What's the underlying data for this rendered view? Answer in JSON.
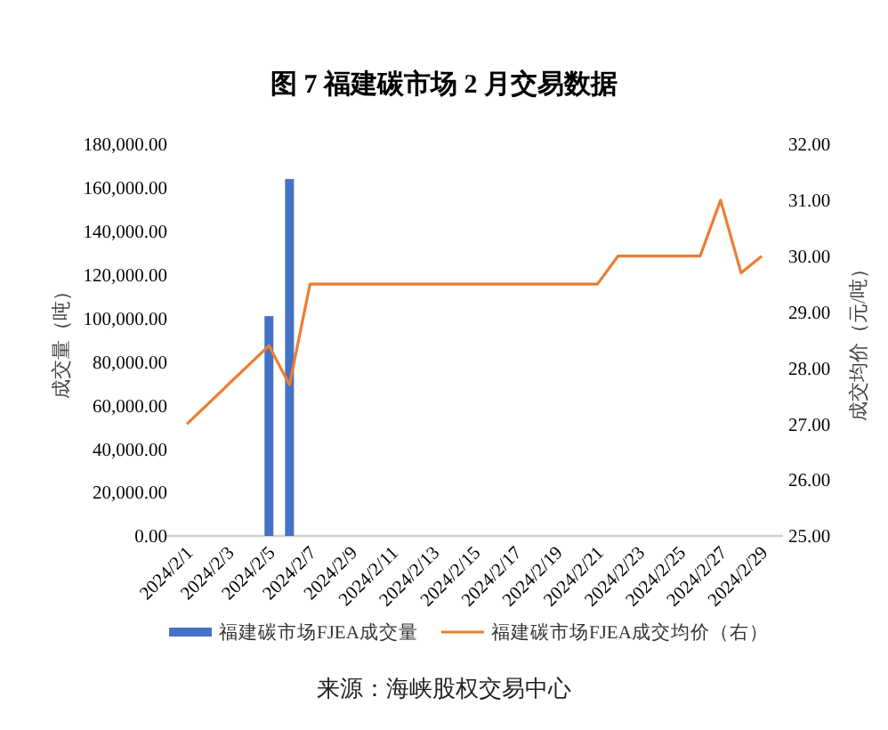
{
  "chart_data": {
    "type": "bar",
    "title": "图 7 福建碳市场 2 月交易数据",
    "categories": [
      "2024/2/1",
      null,
      "2024/2/3",
      null,
      "2024/2/5",
      null,
      "2024/2/7",
      null,
      "2024/2/9",
      null,
      "2024/2/11",
      null,
      "2024/2/13",
      null,
      "2024/2/15",
      null,
      "2024/2/17",
      null,
      "2024/2/19",
      null,
      "2024/2/21",
      null,
      "2024/2/23",
      null,
      "2024/2/25",
      null,
      "2024/2/27",
      null,
      "2024/2/29"
    ],
    "series": [
      {
        "name": "福建碳市场FJEA成交量",
        "color": "#4472c4",
        "values": [
          null,
          null,
          null,
          null,
          101000,
          164000,
          null,
          null,
          null,
          null,
          null,
          null,
          null,
          null,
          null,
          null,
          null,
          null,
          null,
          null,
          null,
          null,
          null,
          null,
          null,
          null,
          null,
          null,
          null
        ]
      },
      {
        "name": "福建碳市场FJEA成交均价（右）",
        "type": "line",
        "axis": "y2",
        "color": "#ed7d31",
        "values": [
          27.0,
          null,
          null,
          null,
          28.4,
          27.7,
          29.5,
          null,
          null,
          null,
          null,
          null,
          null,
          null,
          null,
          null,
          null,
          null,
          null,
          null,
          29.5,
          30.0,
          null,
          null,
          null,
          30.0,
          31.0,
          29.7,
          30.0
        ]
      }
    ],
    "ylabel": "成交量（吨）",
    "y2label": "成交均价（元/吨）",
    "ylim": [
      0,
      180000
    ],
    "yticks": [
      {
        "value": 0,
        "label": "0.00"
      },
      {
        "value": 20000,
        "label": "20,000.00"
      },
      {
        "value": 40000,
        "label": "40,000.00"
      },
      {
        "value": 60000,
        "label": "60,000.00"
      },
      {
        "value": 80000,
        "label": "80,000.00"
      },
      {
        "value": 100000,
        "label": "100,000.00"
      },
      {
        "value": 120000,
        "label": "120,000.00"
      },
      {
        "value": 140000,
        "label": "140,000.00"
      },
      {
        "value": 160000,
        "label": "160,000.00"
      },
      {
        "value": 180000,
        "label": "180,000.00"
      }
    ],
    "y2lim": [
      25,
      32
    ],
    "y2ticks": [
      {
        "value": 25,
        "label": "25.00"
      },
      {
        "value": 26,
        "label": "26.00"
      },
      {
        "value": 27,
        "label": "27.00"
      },
      {
        "value": 28,
        "label": "28.00"
      },
      {
        "value": 29,
        "label": "29.00"
      },
      {
        "value": 30,
        "label": "30.00"
      },
      {
        "value": 31,
        "label": "31.00"
      },
      {
        "value": 32,
        "label": "32.00"
      }
    ],
    "grid": false,
    "legend": "bottom",
    "marker": "none",
    "line_style": "solid",
    "annotations": [
      "来源：海峡股权交易中心"
    ]
  }
}
